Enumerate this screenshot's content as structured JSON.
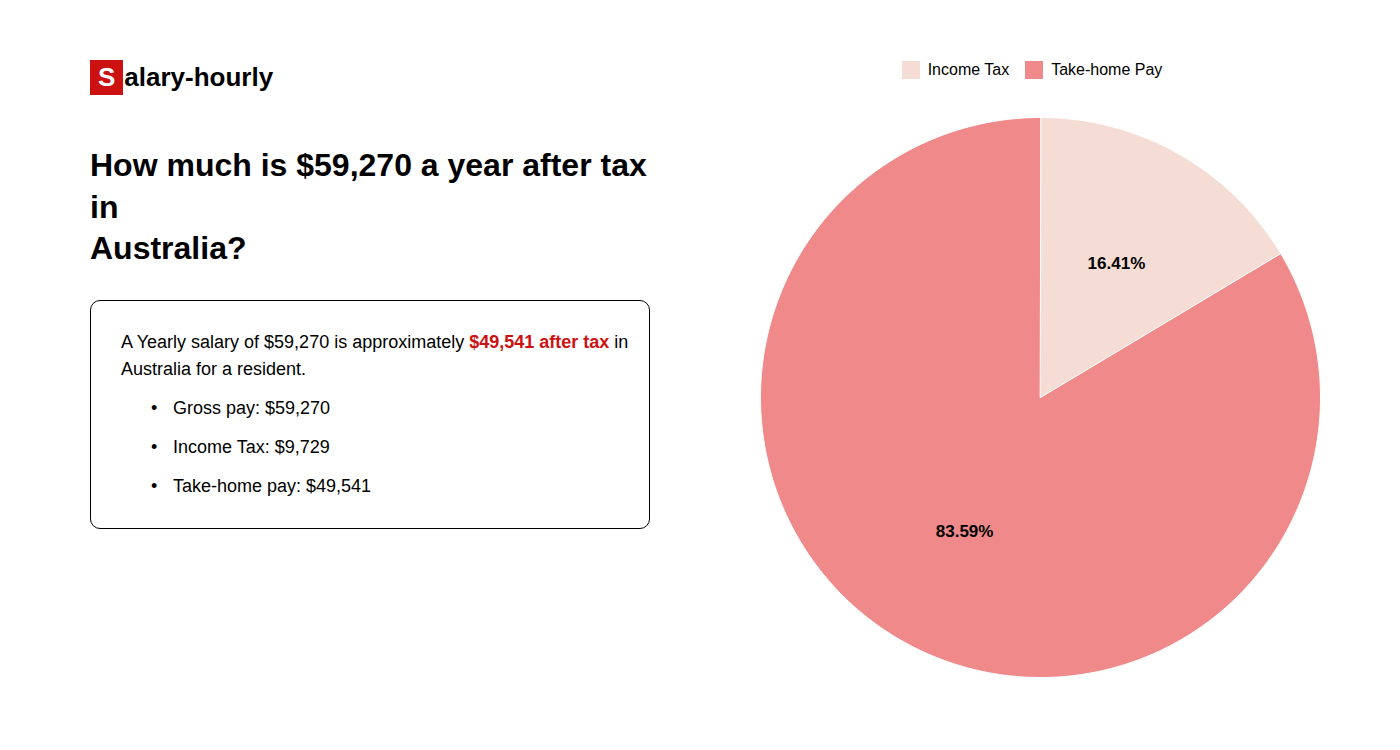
{
  "chart_data": {
    "type": "pie",
    "title": "How much is $59,270 a year after tax in\nAustralia?",
    "annotations": [
      {
        "runs": [
          {
            "text": "S",
            "color": "#ffffff",
            "background": "#cc1111"
          },
          {
            "text": "alary-hourly"
          }
        ]
      },
      {
        "runs": [
          {
            "text": "A Yearly salary of $59,270 is approximately "
          },
          {
            "text": "$49,541 after tax",
            "color": "#cc1111"
          },
          {
            "text": " in"
          }
        ]
      },
      {
        "runs": [
          {
            "text": "Australia for a resident."
          }
        ]
      },
      {
        "bullet": "•",
        "runs": [
          {
            "text": "Gross pay: $59,270"
          }
        ]
      },
      {
        "bullet": "•",
        "runs": [
          {
            "text": "Income Tax: $9,729"
          }
        ]
      },
      {
        "bullet": "•",
        "runs": [
          {
            "text": "Take-home pay: $49,541"
          }
        ]
      }
    ],
    "categories": [
      "Income Tax",
      "Take-home Pay"
    ],
    "values": [
      16.41,
      83.59
    ],
    "value_labels": [
      "16.41%",
      "83.59%"
    ],
    "colors": [
      "#f5ddd5",
      "#f08a8a"
    ],
    "data_labels": true,
    "legend": "top"
  }
}
